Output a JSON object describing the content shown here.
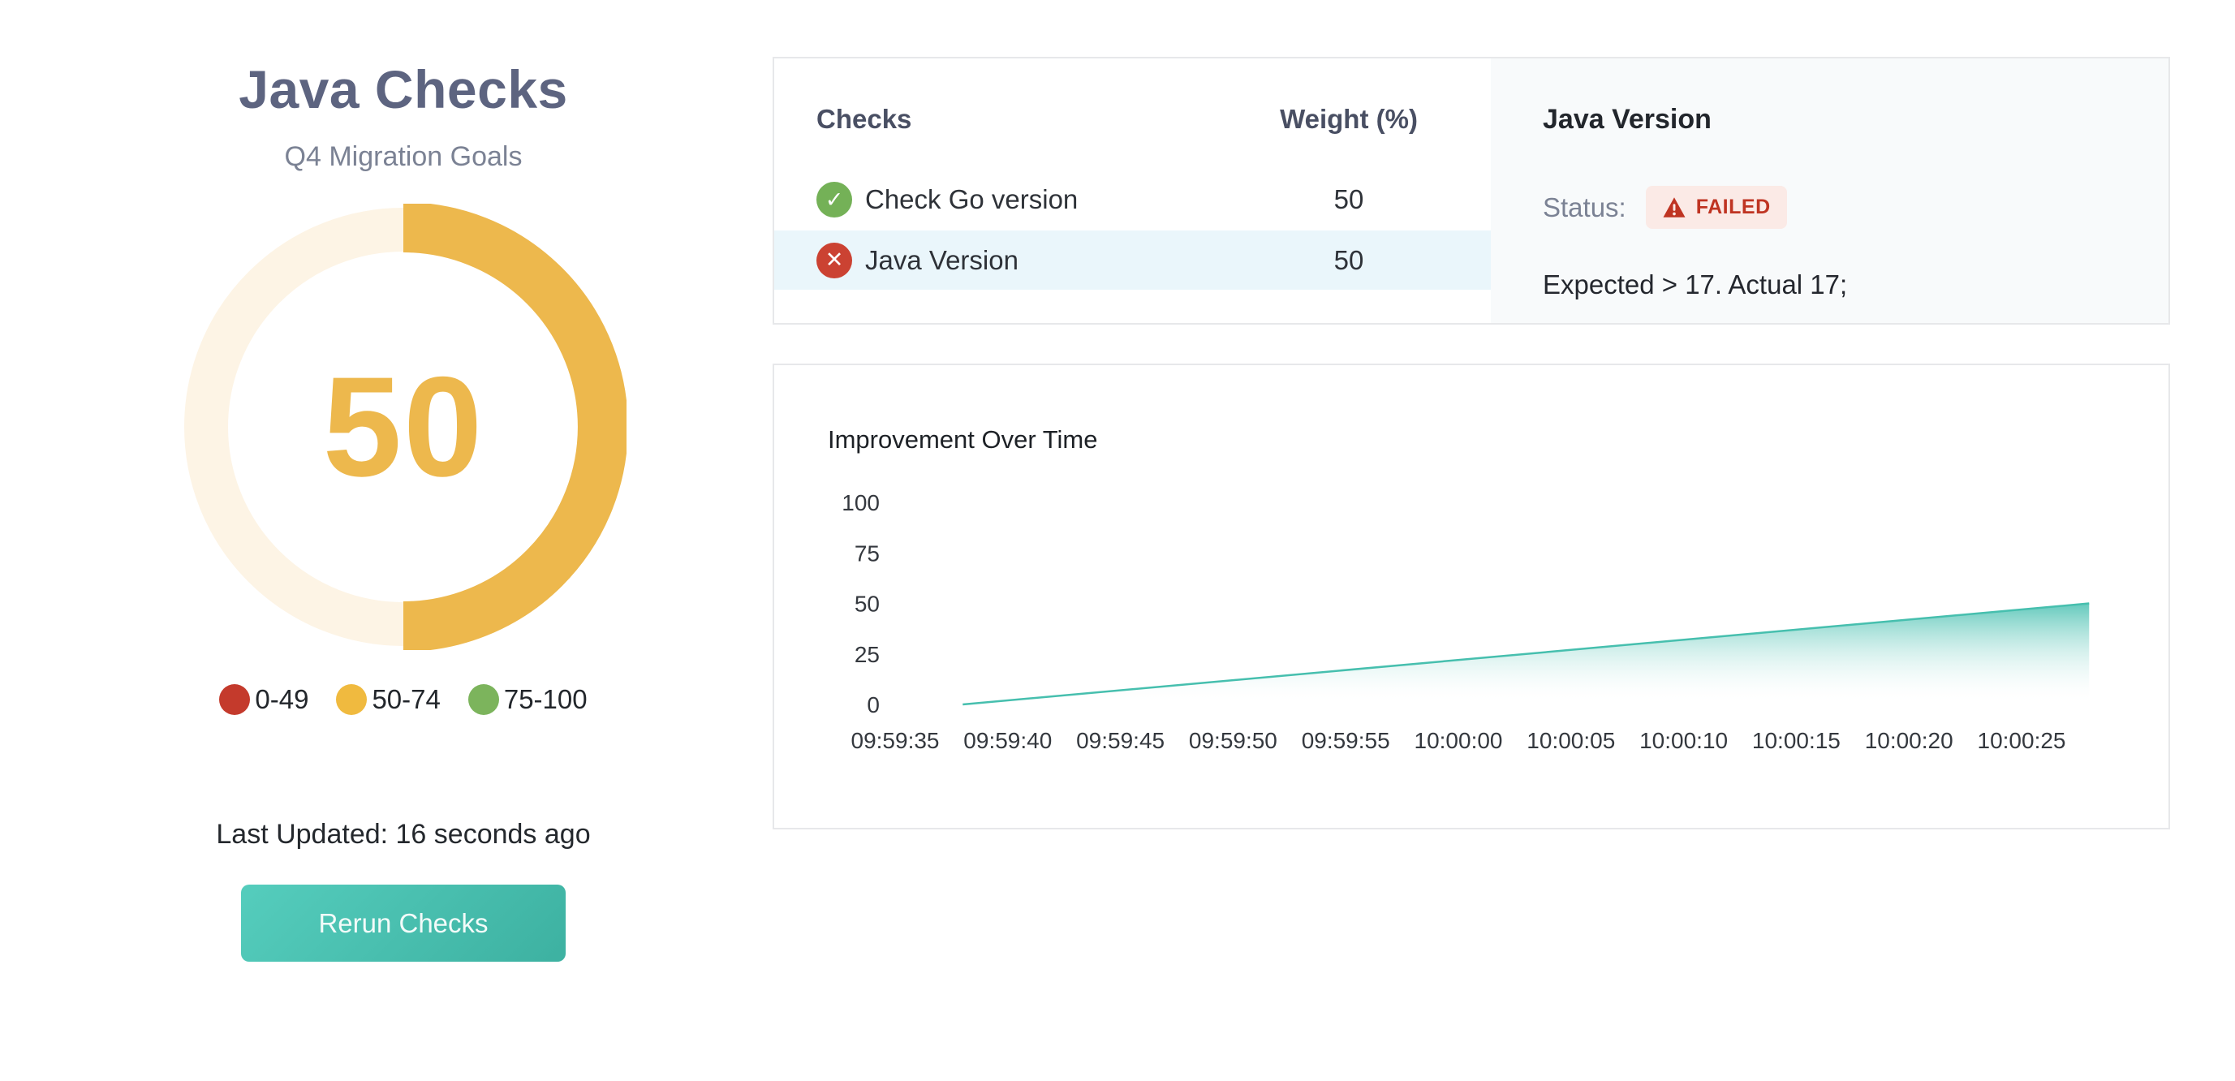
{
  "summary": {
    "title": "Java Checks",
    "subtitle": "Q4 Migration Goals",
    "score": "50",
    "gauge": {
      "value": 50,
      "max": 100,
      "arc_color": "#edb84d",
      "track_color": "#fdf4e5"
    },
    "legend": [
      {
        "label": "0-49",
        "color": "#c43a2c"
      },
      {
        "label": "50-74",
        "color": "#f0ba3f"
      },
      {
        "label": "75-100",
        "color": "#7cb45c"
      }
    ],
    "last_updated": "Last Updated: 16 seconds ago",
    "rerun_button_label": "Rerun Checks"
  },
  "checks_table": {
    "columns": [
      "Checks",
      "Weight (%)"
    ],
    "rows": [
      {
        "name": "Check Go version",
        "weight": "50",
        "status": "passed",
        "icon": "check-circle",
        "icon_color": "#74b157",
        "selected": false
      },
      {
        "name": "Java Version",
        "weight": "50",
        "status": "failed",
        "icon": "x-circle",
        "icon_color": "#cb4232",
        "selected": true
      }
    ]
  },
  "detail": {
    "title": "Java Version",
    "status_label": "Status:",
    "status_badge": "FAILED",
    "badge_icon": "warning-triangle",
    "badge_icon_color": "#bf3422",
    "badge_bg": "#fbeae6",
    "message": "Expected > 17. Actual 17;"
  },
  "chart_data": {
    "type": "area",
    "title": "Improvement Over Time",
    "xlabel": "",
    "ylabel": "",
    "ylim": [
      0,
      100
    ],
    "y_ticks": [
      100,
      75,
      50,
      25,
      0
    ],
    "x_ticks": [
      "09:59:35",
      "09:59:40",
      "09:59:45",
      "09:59:50",
      "09:59:55",
      "10:00:00",
      "10:00:05",
      "10:00:10",
      "10:00:15",
      "10:00:20",
      "10:00:25"
    ],
    "grid": false,
    "legend_position": "none",
    "series": [
      {
        "name": "Improvement",
        "points": [
          [
            "09:59:38",
            0
          ],
          [
            "10:00:28",
            50
          ]
        ],
        "shape": "linear-rise"
      }
    ],
    "area_color_top": "#4fc2b3",
    "area_color_bottom": "#ffffff",
    "line_color": "#46bfae"
  },
  "colors": {
    "accent_teal": "#3db1a1",
    "accent_amber": "#edb84d",
    "fail_red": "#bf3422",
    "pass_green": "#74b157",
    "selected_row_bg": "#eaf6fb",
    "detail_bg": "#f8fafb"
  }
}
